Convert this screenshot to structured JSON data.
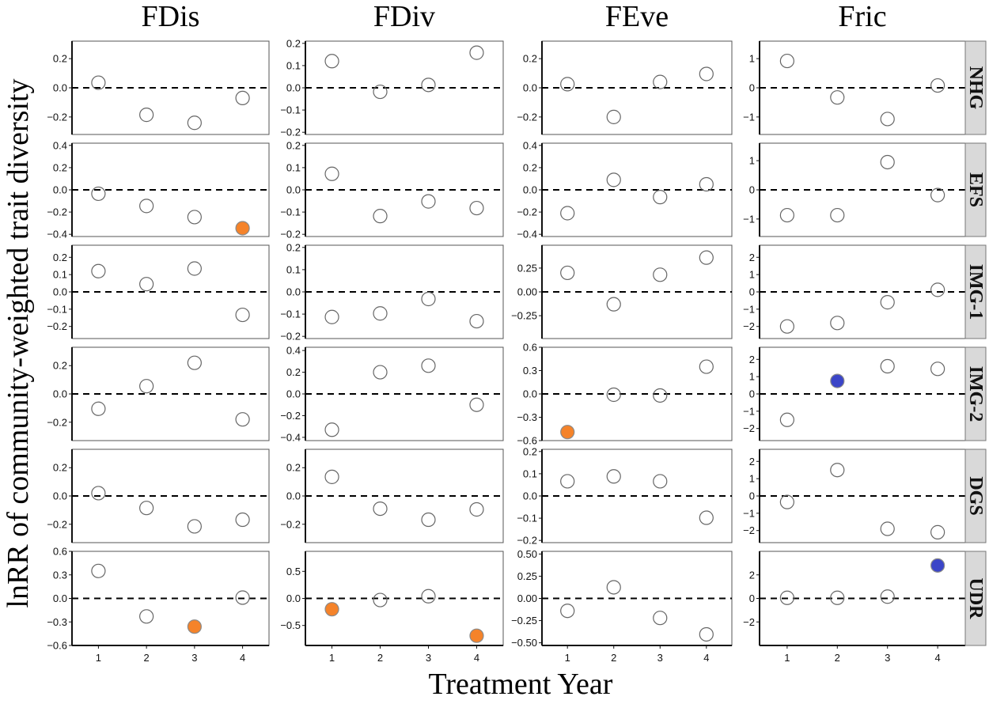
{
  "chart_data": {
    "type": "scatter",
    "title": "",
    "xlabel": "Treatment Year",
    "ylabel": "lnRR of community-weighted trait diversity",
    "x_ticks": [
      1,
      2,
      3,
      4
    ],
    "x": [
      1,
      2,
      3,
      4
    ],
    "columns": [
      "FDis",
      "FDiv",
      "FEve",
      "Fric"
    ],
    "rows": [
      "NHG",
      "EFS",
      "IMG-1",
      "IMG-2",
      "DGS",
      "UDR"
    ],
    "reference_line": {
      "y": 0,
      "style": "dashed"
    },
    "grid": false,
    "legend": "none",
    "colors": {
      "open_point_stroke": "#666666",
      "significant_negative": "#F5832A",
      "significant_positive": "#3B45C8",
      "strip_background": "#D9D9D9"
    },
    "panels": [
      {
        "row": "NHG",
        "col": "FDis",
        "ylim": [
          -0.32,
          0.32
        ],
        "yticks": [
          -0.2,
          0.0,
          0.2
        ],
        "yticklabels": [
          "−0.2",
          "0.0",
          "0.2"
        ],
        "values": [
          0.035,
          -0.185,
          -0.24,
          -0.07
        ],
        "highlight": [
          null,
          null,
          null,
          null
        ]
      },
      {
        "row": "NHG",
        "col": "FDiv",
        "ylim": [
          -0.21,
          0.21
        ],
        "yticks": [
          -0.2,
          -0.1,
          0.0,
          0.1,
          0.2
        ],
        "yticklabels": [
          "−0.2",
          "−0.1",
          "0.0",
          "0.1",
          "0.2"
        ],
        "values": [
          0.12,
          -0.018,
          0.013,
          0.158
        ],
        "highlight": [
          null,
          null,
          null,
          null
        ]
      },
      {
        "row": "NHG",
        "col": "FEve",
        "ylim": [
          -0.32,
          0.32
        ],
        "yticks": [
          -0.2,
          0.0,
          0.2
        ],
        "yticklabels": [
          "−0.2",
          "0.0",
          "0.2"
        ],
        "values": [
          0.025,
          -0.2,
          0.04,
          0.095
        ],
        "highlight": [
          null,
          null,
          null,
          null
        ]
      },
      {
        "row": "NHG",
        "col": "Fric",
        "ylim": [
          -1.6,
          1.6
        ],
        "yticks": [
          -1,
          0,
          1
        ],
        "yticklabels": [
          "−1",
          "0",
          "1"
        ],
        "values": [
          0.92,
          -0.33,
          -1.07,
          0.08
        ],
        "highlight": [
          null,
          null,
          null,
          null
        ]
      },
      {
        "row": "EFS",
        "col": "FDis",
        "ylim": [
          -0.42,
          0.42
        ],
        "yticks": [
          -0.4,
          -0.2,
          0.0,
          0.2,
          0.4
        ],
        "yticklabels": [
          "−0.4",
          "−0.2",
          "0.0",
          "0.2",
          "0.4"
        ],
        "values": [
          -0.035,
          -0.145,
          -0.245,
          -0.345
        ],
        "highlight": [
          null,
          null,
          null,
          "negative"
        ]
      },
      {
        "row": "EFS",
        "col": "FDiv",
        "ylim": [
          -0.21,
          0.21
        ],
        "yticks": [
          -0.2,
          -0.1,
          0.0,
          0.1,
          0.2
        ],
        "yticklabels": [
          "−0.2",
          "−0.1",
          "0.0",
          "0.1",
          "0.2"
        ],
        "values": [
          0.072,
          -0.118,
          -0.052,
          -0.082
        ],
        "highlight": [
          null,
          null,
          null,
          null
        ]
      },
      {
        "row": "EFS",
        "col": "FEve",
        "ylim": [
          -0.42,
          0.42
        ],
        "yticks": [
          -0.4,
          -0.2,
          0.0,
          0.2,
          0.4
        ],
        "yticklabels": [
          "−0.4",
          "−0.2",
          "0.0",
          "0.2",
          "0.4"
        ],
        "values": [
          -0.21,
          0.09,
          -0.065,
          0.05
        ],
        "highlight": [
          null,
          null,
          null,
          null
        ]
      },
      {
        "row": "EFS",
        "col": "Fric",
        "ylim": [
          -1.6,
          1.6
        ],
        "yticks": [
          -1,
          0,
          1
        ],
        "yticklabels": [
          "−1",
          "0",
          "1"
        ],
        "values": [
          -0.87,
          -0.87,
          0.95,
          -0.18
        ],
        "highlight": [
          null,
          null,
          null,
          null
        ]
      },
      {
        "row": "IMG-1",
        "col": "FDis",
        "ylim": [
          -0.27,
          0.27
        ],
        "yticks": [
          -0.2,
          -0.1,
          0.0,
          0.1,
          0.2
        ],
        "yticklabels": [
          "−0.2",
          "−0.1",
          "0.0",
          "0.1",
          "0.2"
        ],
        "values": [
          0.12,
          0.045,
          0.135,
          -0.133
        ],
        "highlight": [
          null,
          null,
          null,
          null
        ]
      },
      {
        "row": "IMG-1",
        "col": "FDiv",
        "ylim": [
          -0.21,
          0.21
        ],
        "yticks": [
          -0.2,
          -0.1,
          0.0,
          0.1,
          0.2
        ],
        "yticklabels": [
          "−0.2",
          "−0.1",
          "0.0",
          "0.1",
          "0.2"
        ],
        "values": [
          -0.113,
          -0.097,
          -0.032,
          -0.132
        ],
        "highlight": [
          null,
          null,
          null,
          null
        ]
      },
      {
        "row": "IMG-1",
        "col": "FEve",
        "ylim": [
          -0.49,
          0.49
        ],
        "yticks": [
          -0.25,
          0.0,
          0.25
        ],
        "yticklabels": [
          "−0.25",
          "0.00",
          "0.25"
        ],
        "values": [
          0.2,
          -0.13,
          0.18,
          0.36
        ],
        "highlight": [
          null,
          null,
          null,
          null
        ]
      },
      {
        "row": "IMG-1",
        "col": "Fric",
        "ylim": [
          -2.7,
          2.7
        ],
        "yticks": [
          -2,
          -1,
          0,
          1,
          2
        ],
        "yticklabels": [
          "−2",
          "−1",
          "0",
          "1",
          "2"
        ],
        "values": [
          -2.0,
          -1.8,
          -0.6,
          0.12
        ],
        "highlight": [
          null,
          null,
          null,
          null
        ]
      },
      {
        "row": "IMG-2",
        "col": "FDis",
        "ylim": [
          -0.33,
          0.33
        ],
        "yticks": [
          -0.2,
          0.0,
          0.2
        ],
        "yticklabels": [
          "−0.2",
          "0.0",
          "0.2"
        ],
        "values": [
          -0.105,
          0.055,
          0.22,
          -0.18
        ],
        "highlight": [
          null,
          null,
          null,
          null
        ]
      },
      {
        "row": "IMG-2",
        "col": "FDiv",
        "ylim": [
          -0.43,
          0.43
        ],
        "yticks": [
          -0.4,
          -0.2,
          0.0,
          0.2,
          0.4
        ],
        "yticklabels": [
          "−0.4",
          "−0.2",
          "0.0",
          "0.2",
          "0.4"
        ],
        "values": [
          -0.33,
          0.2,
          0.26,
          -0.1
        ],
        "highlight": [
          null,
          null,
          null,
          null
        ]
      },
      {
        "row": "IMG-2",
        "col": "FEve",
        "ylim": [
          -0.6,
          0.6
        ],
        "yticks": [
          -0.6,
          -0.3,
          0.0,
          0.3,
          0.6
        ],
        "yticklabels": [
          "−0.6",
          "−0.3",
          "0.0",
          "0.3",
          "0.6"
        ],
        "values": [
          -0.49,
          -0.01,
          -0.02,
          0.35
        ],
        "highlight": [
          "negative",
          null,
          null,
          null
        ]
      },
      {
        "row": "IMG-2",
        "col": "Fric",
        "ylim": [
          -2.7,
          2.7
        ],
        "yticks": [
          -2,
          -1,
          0,
          1,
          2
        ],
        "yticklabels": [
          "−2",
          "−1",
          "0",
          "1",
          "2"
        ],
        "values": [
          -1.5,
          0.75,
          1.6,
          1.45
        ],
        "highlight": [
          null,
          "positive",
          null,
          null
        ]
      },
      {
        "row": "DGS",
        "col": "FDis",
        "ylim": [
          -0.33,
          0.33
        ],
        "yticks": [
          -0.2,
          0.0,
          0.2
        ],
        "yticklabels": [
          "−0.2",
          "0.0",
          "0.2"
        ],
        "values": [
          0.02,
          -0.085,
          -0.215,
          -0.168
        ],
        "highlight": [
          null,
          null,
          null,
          null
        ]
      },
      {
        "row": "DGS",
        "col": "FDiv",
        "ylim": [
          -0.33,
          0.33
        ],
        "yticks": [
          -0.2,
          0.0,
          0.2
        ],
        "yticklabels": [
          "−0.2",
          "0.0",
          "0.2"
        ],
        "values": [
          0.135,
          -0.09,
          -0.168,
          -0.095
        ],
        "highlight": [
          null,
          null,
          null,
          null
        ]
      },
      {
        "row": "DGS",
        "col": "FEve",
        "ylim": [
          -0.21,
          0.21
        ],
        "yticks": [
          -0.2,
          -0.1,
          0.0,
          0.1,
          0.2
        ],
        "yticklabels": [
          "−0.2",
          "−0.1",
          "0.0",
          "0.1",
          "0.2"
        ],
        "values": [
          0.066,
          0.088,
          0.066,
          -0.098
        ],
        "highlight": [
          null,
          null,
          null,
          null
        ]
      },
      {
        "row": "DGS",
        "col": "Fric",
        "ylim": [
          -2.7,
          2.7
        ],
        "yticks": [
          -2,
          -1,
          0,
          1,
          2
        ],
        "yticklabels": [
          "−2",
          "−1",
          "0",
          "1",
          "2"
        ],
        "values": [
          -0.35,
          1.5,
          -1.9,
          -2.1
        ],
        "highlight": [
          null,
          null,
          null,
          null
        ]
      },
      {
        "row": "UDR",
        "col": "FDis",
        "ylim": [
          -0.6,
          0.6
        ],
        "yticks": [
          -0.6,
          -0.3,
          0.0,
          0.3,
          0.6
        ],
        "yticklabels": [
          "−0.6",
          "−0.3",
          "0.0",
          "0.3",
          "0.6"
        ],
        "values": [
          0.35,
          -0.23,
          -0.36,
          0.01
        ],
        "highlight": [
          null,
          null,
          "negative",
          null
        ]
      },
      {
        "row": "UDR",
        "col": "FDiv",
        "ylim": [
          -0.87,
          0.87
        ],
        "yticks": [
          -0.5,
          0.0,
          0.5
        ],
        "yticklabels": [
          "−0.5",
          "0.0",
          "0.5"
        ],
        "values": [
          -0.2,
          -0.03,
          0.04,
          -0.69
        ],
        "highlight": [
          "negative",
          null,
          null,
          "negative"
        ]
      },
      {
        "row": "UDR",
        "col": "FEve",
        "ylim": [
          -0.53,
          0.53
        ],
        "yticks": [
          -0.5,
          -0.25,
          0.0,
          0.25,
          0.5
        ],
        "yticklabels": [
          "−0.50",
          "−0.25",
          "0.00",
          "0.25",
          "0.50"
        ],
        "values": [
          -0.14,
          0.125,
          -0.22,
          -0.405
        ],
        "highlight": [
          null,
          null,
          null,
          null
        ]
      },
      {
        "row": "UDR",
        "col": "Fric",
        "ylim": [
          -4.0,
          4.0
        ],
        "yticks": [
          -2,
          0,
          2
        ],
        "yticklabels": [
          "−2",
          "0",
          "2"
        ],
        "values": [
          0.05,
          0.05,
          0.15,
          2.8
        ],
        "highlight": [
          null,
          null,
          null,
          "positive"
        ]
      }
    ]
  }
}
